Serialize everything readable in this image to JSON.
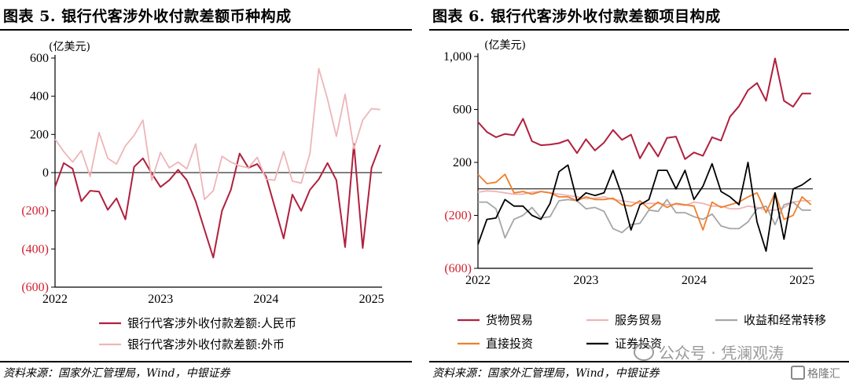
{
  "left": {
    "title": "图表 5. 银行代客涉外收付款差额币种构成",
    "source": "资料来源：国家外汇管理局，Wind，中银证券",
    "chart_data": {
      "type": "line",
      "unit_label": "(亿美元)",
      "ylim": [
        -600,
        600
      ],
      "yticks": [
        600,
        400,
        200,
        0,
        -200,
        -400,
        -600
      ],
      "ytick_labels": [
        "600",
        "400",
        "200",
        "0",
        "(200)",
        "(400)",
        "(600)"
      ],
      "xlim": [
        2022.0,
        2025.1
      ],
      "xticks": [
        2022,
        2023,
        2024,
        2025
      ],
      "xtick_labels": [
        "2022",
        "2023",
        "2024",
        "2025"
      ],
      "legend_placement": "bottom",
      "series": [
        {
          "name": "银行代客涉外收付款差额:人民币",
          "color": "#b0203e",
          "x": [
            2022.0,
            2022.083,
            2022.167,
            2022.25,
            2022.333,
            2022.417,
            2022.5,
            2022.583,
            2022.667,
            2022.75,
            2022.833,
            2022.917,
            2023.0,
            2023.083,
            2023.167,
            2023.25,
            2023.333,
            2023.417,
            2023.5,
            2023.583,
            2023.667,
            2023.75,
            2023.833,
            2023.917,
            2024.0,
            2024.083,
            2024.167,
            2024.25,
            2024.333,
            2024.417,
            2024.5,
            2024.583,
            2024.667,
            2024.75,
            2024.833,
            2024.917,
            2025.0,
            2025.083
          ],
          "y": [
            -75,
            50,
            20,
            -150,
            -95,
            -100,
            -195,
            -135,
            -245,
            30,
            75,
            -5,
            -75,
            -40,
            15,
            -40,
            -150,
            -300,
            -445,
            -200,
            -90,
            100,
            25,
            45,
            -20,
            -180,
            -345,
            -115,
            -200,
            -90,
            -35,
            50,
            -40,
            -390,
            150,
            -395,
            25,
            145
          ]
        },
        {
          "name": "银行代客涉外收付款差额:外币",
          "color": "#eeb5b8",
          "x": [
            2022.0,
            2022.083,
            2022.167,
            2022.25,
            2022.333,
            2022.417,
            2022.5,
            2022.583,
            2022.667,
            2022.75,
            2022.833,
            2022.917,
            2023.0,
            2023.083,
            2023.167,
            2023.25,
            2023.333,
            2023.417,
            2023.5,
            2023.583,
            2023.667,
            2023.75,
            2023.833,
            2023.917,
            2024.0,
            2024.083,
            2024.167,
            2024.25,
            2024.333,
            2024.417,
            2024.5,
            2024.583,
            2024.667,
            2024.75,
            2024.833,
            2024.917,
            2025.0,
            2025.083
          ],
          "y": [
            175,
            110,
            55,
            115,
            -20,
            210,
            75,
            45,
            140,
            195,
            275,
            -40,
            105,
            25,
            55,
            20,
            150,
            -140,
            -95,
            85,
            55,
            35,
            25,
            80,
            -35,
            -40,
            110,
            -45,
            -55,
            100,
            545,
            385,
            190,
            410,
            125,
            275,
            335,
            330
          ]
        }
      ]
    }
  },
  "right": {
    "title": "图表 6. 银行代客涉外收付款差额项目构成",
    "source": "资料来源：国家外汇管理局，Wind，中银证券",
    "chart_data": {
      "type": "line",
      "unit_label": "(亿美元)",
      "ylim": [
        -600,
        1000
      ],
      "yticks": [
        1000,
        600,
        200,
        -200,
        -600
      ],
      "ytick_labels": [
        "1,000",
        "600",
        "200",
        "(200)",
        "(600)"
      ],
      "xlim": [
        2022.0,
        2025.1
      ],
      "xticks": [
        2022,
        2023,
        2024,
        2025
      ],
      "xtick_labels": [
        "2022",
        "2023",
        "2024",
        "2025"
      ],
      "legend_placement": "bottom",
      "series": [
        {
          "name": "货物贸易",
          "color": "#b0203e",
          "x": [
            2022.0,
            2022.083,
            2022.167,
            2022.25,
            2022.333,
            2022.417,
            2022.5,
            2022.583,
            2022.667,
            2022.75,
            2022.833,
            2022.917,
            2023.0,
            2023.083,
            2023.167,
            2023.25,
            2023.333,
            2023.417,
            2023.5,
            2023.583,
            2023.667,
            2023.75,
            2023.833,
            2023.917,
            2024.0,
            2024.083,
            2024.167,
            2024.25,
            2024.333,
            2024.417,
            2024.5,
            2024.583,
            2024.667,
            2024.75,
            2024.833,
            2024.917,
            2025.0,
            2025.083
          ],
          "y": [
            505,
            430,
            390,
            415,
            405,
            530,
            360,
            330,
            335,
            345,
            370,
            270,
            375,
            290,
            350,
            445,
            370,
            410,
            230,
            350,
            245,
            385,
            395,
            225,
            275,
            250,
            390,
            365,
            545,
            625,
            745,
            800,
            665,
            985,
            665,
            620,
            720,
            720
          ]
        },
        {
          "name": "服务贸易",
          "color": "#eeb5b8",
          "x": [
            2022.0,
            2022.083,
            2022.167,
            2022.25,
            2022.333,
            2022.417,
            2022.5,
            2022.583,
            2022.667,
            2022.75,
            2022.833,
            2022.917,
            2023.0,
            2023.083,
            2023.167,
            2023.25,
            2023.333,
            2023.417,
            2023.5,
            2023.583,
            2023.667,
            2023.75,
            2023.833,
            2023.917,
            2024.0,
            2024.083,
            2024.167,
            2024.25,
            2024.333,
            2024.417,
            2024.5,
            2024.583,
            2024.667,
            2024.75,
            2024.833,
            2024.917,
            2025.0,
            2025.083
          ],
          "y": [
            -25,
            -15,
            -20,
            -30,
            -40,
            -40,
            -25,
            -20,
            -30,
            -40,
            -50,
            -60,
            -75,
            -70,
            -60,
            -80,
            -90,
            -100,
            -110,
            -110,
            -110,
            -120,
            -115,
            -125,
            -100,
            -110,
            -130,
            -130,
            -150,
            -150,
            -130,
            -140,
            -160,
            -160,
            -140,
            -100,
            -90,
            -90
          ]
        },
        {
          "name": "收益和经常转移",
          "color": "#a6a6a6",
          "x": [
            2022.0,
            2022.083,
            2022.167,
            2022.25,
            2022.333,
            2022.417,
            2022.5,
            2022.583,
            2022.667,
            2022.75,
            2022.833,
            2022.917,
            2023.0,
            2023.083,
            2023.167,
            2023.25,
            2023.333,
            2023.417,
            2023.5,
            2023.583,
            2023.667,
            2023.75,
            2023.833,
            2023.917,
            2024.0,
            2024.083,
            2024.167,
            2024.25,
            2024.333,
            2024.417,
            2024.5,
            2024.583,
            2024.667,
            2024.75,
            2024.833,
            2024.917,
            2025.0,
            2025.083
          ],
          "y": [
            -100,
            -100,
            -150,
            -370,
            -230,
            -200,
            -140,
            -220,
            -210,
            -90,
            -80,
            -90,
            -150,
            -140,
            -170,
            -300,
            -330,
            -270,
            -260,
            -160,
            -170,
            -80,
            -180,
            -180,
            -210,
            -230,
            -190,
            -280,
            -300,
            -300,
            -250,
            -150,
            -130,
            -270,
            -120,
            -100,
            -160,
            -160
          ]
        },
        {
          "name": "直接投资",
          "color": "#f07f2b",
          "x": [
            2022.0,
            2022.083,
            2022.167,
            2022.25,
            2022.333,
            2022.417,
            2022.5,
            2022.583,
            2022.667,
            2022.75,
            2022.833,
            2022.917,
            2023.0,
            2023.083,
            2023.167,
            2023.25,
            2023.333,
            2023.417,
            2023.5,
            2023.583,
            2023.667,
            2023.75,
            2023.833,
            2023.917,
            2024.0,
            2024.083,
            2024.167,
            2024.25,
            2024.333,
            2024.417,
            2024.5,
            2024.583,
            2024.667,
            2024.75,
            2024.833,
            2024.917,
            2025.0,
            2025.083
          ],
          "y": [
            110,
            40,
            50,
            110,
            -30,
            -20,
            -40,
            -20,
            -30,
            -60,
            -60,
            -90,
            -60,
            -80,
            -80,
            -70,
            -120,
            -130,
            -90,
            -150,
            -100,
            -140,
            -110,
            -120,
            -130,
            -310,
            -100,
            -140,
            -120,
            -100,
            -60,
            -30,
            -180,
            -30,
            -230,
            -200,
            -60,
            -120
          ]
        },
        {
          "name": "证券投资",
          "color": "#000000",
          "x": [
            2022.0,
            2022.083,
            2022.167,
            2022.25,
            2022.333,
            2022.417,
            2022.5,
            2022.583,
            2022.667,
            2022.75,
            2022.833,
            2022.917,
            2023.0,
            2023.083,
            2023.167,
            2023.25,
            2023.333,
            2023.417,
            2023.5,
            2023.583,
            2023.667,
            2023.75,
            2023.833,
            2023.917,
            2024.0,
            2024.083,
            2024.167,
            2024.25,
            2024.333,
            2024.417,
            2024.5,
            2024.583,
            2024.667,
            2024.75,
            2024.833,
            2024.917,
            2025.0,
            2025.083
          ],
          "y": [
            -420,
            -230,
            -220,
            -80,
            -130,
            -130,
            -200,
            -230,
            -110,
            130,
            180,
            -90,
            -30,
            -50,
            -30,
            140,
            -50,
            -310,
            -120,
            -80,
            140,
            140,
            0,
            140,
            -80,
            20,
            190,
            -20,
            -60,
            -120,
            200,
            -250,
            -470,
            -30,
            -380,
            0,
            30,
            80
          ]
        }
      ]
    }
  },
  "watermark": {
    "wechat_text": "公众号 · 凭澜观涛",
    "corner_text": "格隆汇"
  }
}
